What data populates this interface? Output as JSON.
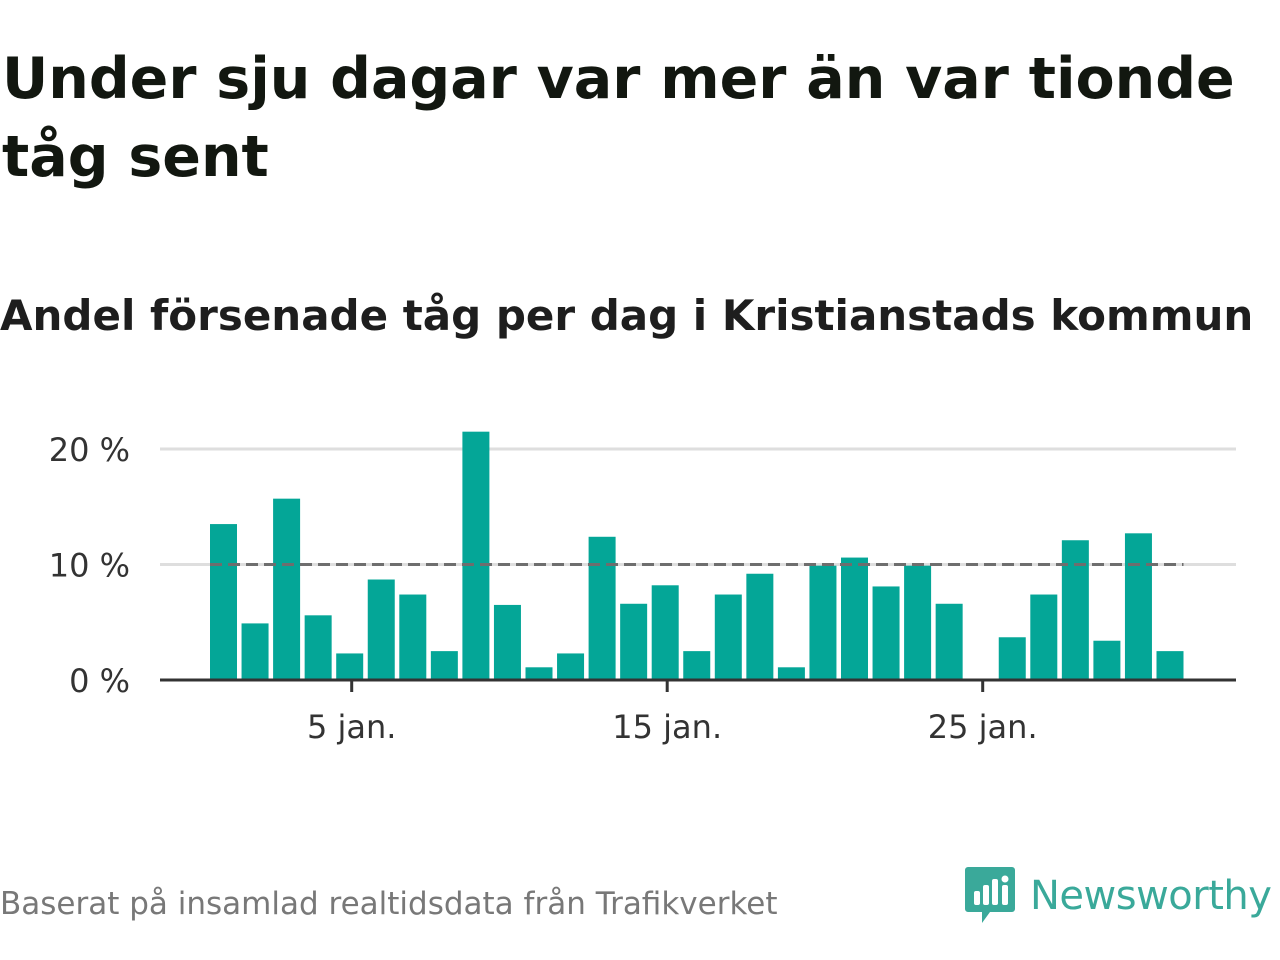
{
  "header": {
    "title": "Under sju dagar var mer än var tionde tåg sent",
    "subtitle": "Andel försenade tåg per dag i Kristianstads kommun"
  },
  "footer": {
    "source": "Baserat på insamlad realtidsdata från Trafikverket",
    "logo_text": "Newsworthy"
  },
  "colors": {
    "bar": "#04a697",
    "reference_line": "#6e6e6e",
    "grid": "#dedede",
    "axis": "#333333",
    "logo": "#3aa99a"
  },
  "chart_data": {
    "type": "bar",
    "categories": [
      "1 jan.",
      "2 jan.",
      "3 jan.",
      "4 jan.",
      "5 jan.",
      "6 jan.",
      "7 jan.",
      "8 jan.",
      "9 jan.",
      "10 jan.",
      "11 jan.",
      "12 jan.",
      "13 jan.",
      "14 jan.",
      "15 jan.",
      "16 jan.",
      "17 jan.",
      "18 jan.",
      "19 jan.",
      "20 jan.",
      "21 jan.",
      "22 jan.",
      "23 jan.",
      "24 jan.",
      "25 jan.",
      "26 jan.",
      "27 jan.",
      "28 jan.",
      "29 jan.",
      "30 jan.",
      "31 jan."
    ],
    "values": [
      13.5,
      4.9,
      15.7,
      5.6,
      2.3,
      8.7,
      7.4,
      2.5,
      21.5,
      6.5,
      1.1,
      2.3,
      12.4,
      6.6,
      8.2,
      2.5,
      7.4,
      9.2,
      1.1,
      9.9,
      10.6,
      8.1,
      9.9,
      6.6,
      0,
      3.7,
      7.4,
      12.1,
      3.4,
      12.7,
      2.5
    ],
    "x_tick_labels": [
      {
        "category": "5 jan.",
        "label": "5 jan."
      },
      {
        "category": "15 jan.",
        "label": "15 jan."
      },
      {
        "category": "25 jan.",
        "label": "25 jan."
      }
    ],
    "y_ticks": [
      {
        "value": 0,
        "label": "0 %"
      },
      {
        "value": 10,
        "label": "10 %"
      },
      {
        "value": 20,
        "label": "20 %"
      }
    ],
    "ylim": [
      0,
      22
    ],
    "reference_line": 10,
    "grid": true,
    "xlabel": "",
    "ylabel": ""
  }
}
